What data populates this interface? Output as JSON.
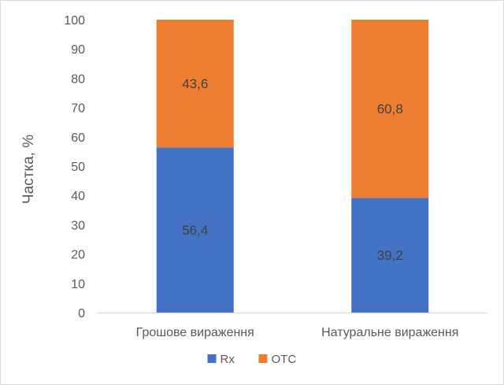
{
  "chart_data": {
    "type": "bar",
    "stacked": true,
    "categories": [
      "Грошове вираження",
      "Натуральне вираження"
    ],
    "series": [
      {
        "name": "Rx",
        "values": [
          56.4,
          39.2
        ],
        "labels": [
          "56,4",
          "39,2"
        ],
        "color": "#4472c4"
      },
      {
        "name": "ОТС",
        "values": [
          43.6,
          60.8
        ],
        "labels": [
          "43,6",
          "60,8"
        ],
        "color": "#ed7d31"
      }
    ],
    "title": "",
    "xlabel": "",
    "ylabel": "Частка, %",
    "ylim": [
      0,
      100
    ],
    "yticks": [
      0,
      10,
      20,
      30,
      40,
      50,
      60,
      70,
      80,
      90,
      100
    ],
    "grid": false,
    "legend_position": "bottom",
    "axis_color": "#d9d9d9"
  }
}
